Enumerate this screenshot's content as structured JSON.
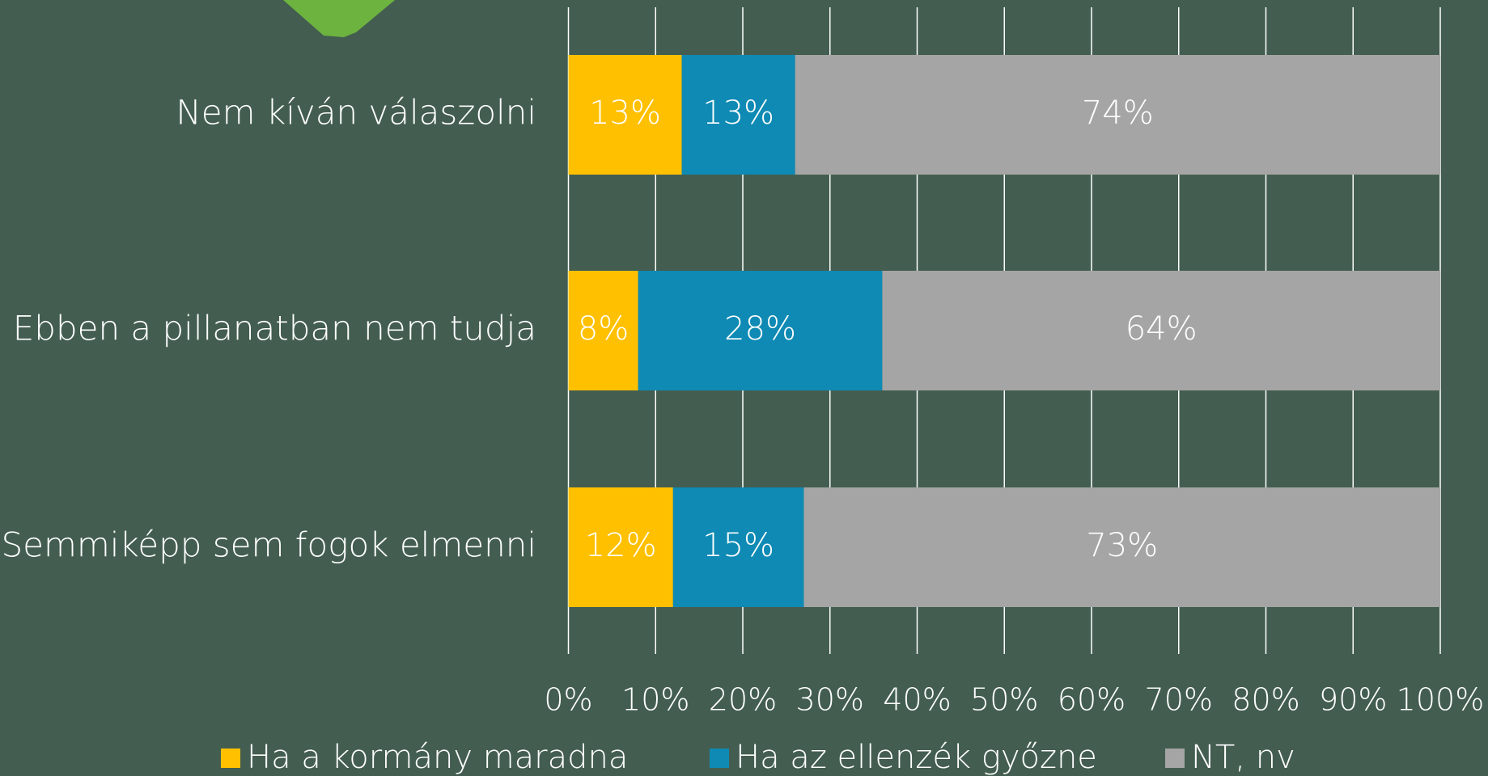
{
  "chart_data": {
    "type": "stacked_barh",
    "categories": [
      "Nem kíván válaszolni",
      "Ebben a pillanatban nem tudja",
      "Semmiképp sem fogok elmenni"
    ],
    "series": [
      {
        "name": "Ha a kormány maradna",
        "color": "#FFC000",
        "values": [
          13,
          8,
          12
        ],
        "value_labels": [
          "13%",
          "8%",
          "12%"
        ]
      },
      {
        "name": "Ha az ellenzék győzne",
        "color": "#0E8AB4",
        "values": [
          13,
          28,
          15
        ],
        "value_labels": [
          "13%",
          "28%",
          "15%"
        ]
      },
      {
        "name": "NT, nv",
        "color": "#A5A5A5",
        "values": [
          74,
          64,
          73
        ],
        "value_labels": [
          "74%",
          "64%",
          "73%"
        ]
      }
    ],
    "xlim": [
      0,
      100
    ],
    "xticks": [
      {
        "value": 0,
        "label": "0%"
      },
      {
        "value": 10,
        "label": "10%"
      },
      {
        "value": 20,
        "label": "20%"
      },
      {
        "value": 30,
        "label": "30%"
      },
      {
        "value": 40,
        "label": "40%"
      },
      {
        "value": 50,
        "label": "50%"
      },
      {
        "value": 60,
        "label": "60%"
      },
      {
        "value": 70,
        "label": "70%"
      },
      {
        "value": 80,
        "label": "80%"
      },
      {
        "value": 90,
        "label": "90%"
      },
      {
        "value": 100,
        "label": "100%"
      }
    ],
    "grid": true,
    "legend": "bottom"
  }
}
